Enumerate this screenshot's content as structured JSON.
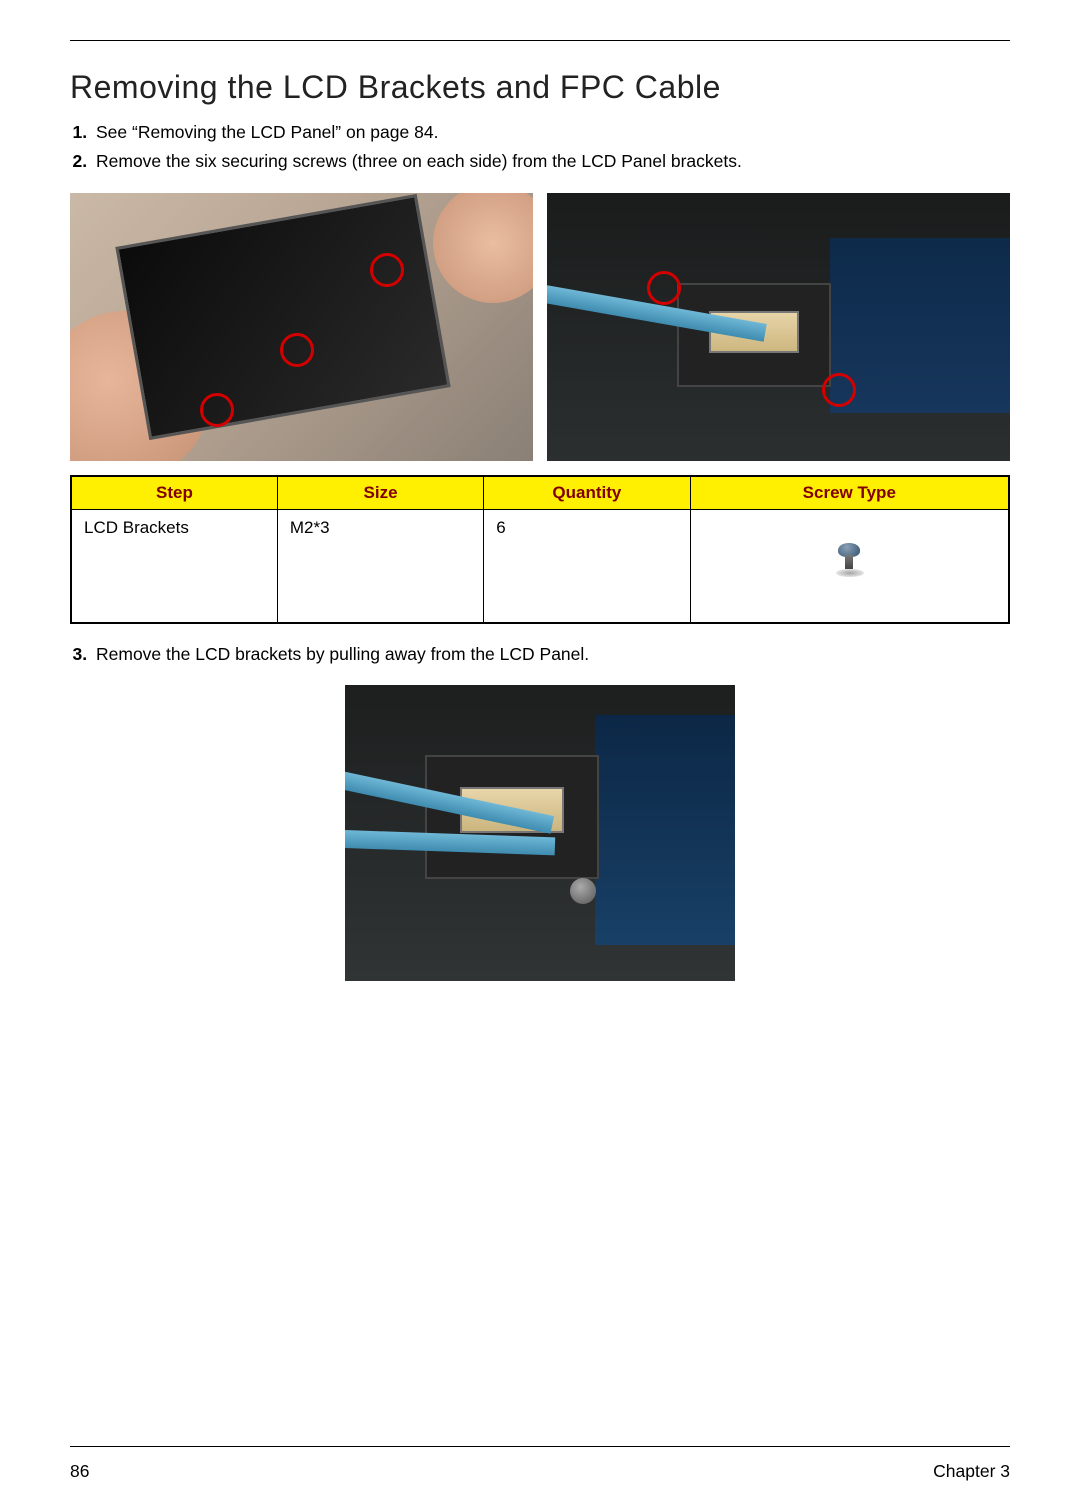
{
  "title": "Removing the LCD Brackets and FPC Cable",
  "steps": {
    "s1": "See “Removing the LCD Panel” on page 84.",
    "s2": "Remove the six securing screws (three on each side) from the LCD Panel brackets.",
    "s3": "Remove the LCD brackets by pulling away from the LCD Panel."
  },
  "table": {
    "headers": {
      "step": "Step",
      "size": "Size",
      "quantity": "Quantity",
      "screw_type": "Screw Type"
    },
    "header_bg": "#ffef00",
    "header_fg": "#800000",
    "border_color": "#000000",
    "rows": [
      {
        "step": "LCD Brackets",
        "size": "M2*3",
        "quantity": "6",
        "screw_type_icon": "screw-blue-m2"
      }
    ]
  },
  "images": {
    "left": {
      "alt": "Hands holding LCD panel with three red-circled bracket screw locations",
      "circles": 3
    },
    "right": {
      "alt": "Close-up of FPC connector on mainboard with tweezers, two red circles",
      "circles": 2
    },
    "center": {
      "alt": "Tweezers disconnecting FPC cable from mainboard connector"
    }
  },
  "footer": {
    "page_number": "86",
    "chapter": "Chapter 3"
  },
  "colors": {
    "text": "#000000",
    "circle": "#d40000",
    "board_blue": "#17365c",
    "skin": "#e7b69a",
    "tweezer": "#6fb7d6"
  },
  "fonts": {
    "title_size_pt": 24,
    "body_size_pt": 13,
    "table_header_weight": "bold"
  }
}
